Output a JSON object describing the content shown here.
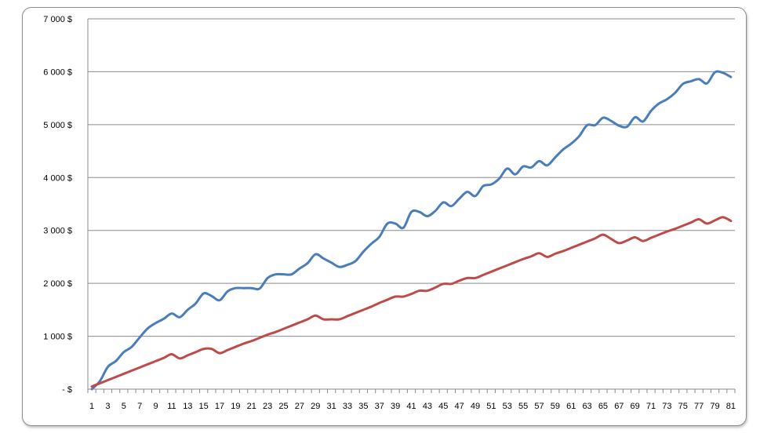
{
  "chart_data": {
    "type": "line",
    "title": "",
    "xlabel": "",
    "ylabel": "",
    "ylim": [
      0,
      7000
    ],
    "grid": true,
    "legend": "none",
    "smooth": true,
    "y_ticks": [
      0,
      1000,
      2000,
      3000,
      4000,
      5000,
      6000,
      7000
    ],
    "y_tick_labels": [
      "- $",
      "1 000 $",
      "2 000 $",
      "3 000 $",
      "4 000 $",
      "5 000 $",
      "6 000 $",
      "7 000 $"
    ],
    "x": [
      1,
      2,
      3,
      4,
      5,
      6,
      7,
      8,
      9,
      10,
      11,
      12,
      13,
      14,
      15,
      16,
      17,
      18,
      19,
      20,
      21,
      22,
      23,
      24,
      25,
      26,
      27,
      28,
      29,
      30,
      31,
      32,
      33,
      34,
      35,
      36,
      37,
      38,
      39,
      40,
      41,
      42,
      43,
      44,
      45,
      46,
      47,
      48,
      49,
      50,
      51,
      52,
      53,
      54,
      55,
      56,
      57,
      58,
      59,
      60,
      61,
      62,
      63,
      64,
      65,
      66,
      67,
      68,
      69,
      70,
      71,
      72,
      73,
      74,
      75,
      76,
      77,
      78,
      79,
      80,
      81
    ],
    "x_tick_labels": [
      "1",
      "3",
      "5",
      "7",
      "9",
      "11",
      "13",
      "15",
      "17",
      "19",
      "21",
      "23",
      "25",
      "27",
      "29",
      "31",
      "33",
      "35",
      "37",
      "39",
      "41",
      "43",
      "45",
      "47",
      "49",
      "51",
      "53",
      "55",
      "57",
      "59",
      "61",
      "63",
      "65",
      "67",
      "69",
      "71",
      "73",
      "75",
      "77",
      "79",
      "81"
    ],
    "series": [
      {
        "color": "#4a7ebb",
        "values": [
          0,
          150,
          420,
          530,
          700,
          800,
          980,
          1150,
          1250,
          1330,
          1430,
          1360,
          1500,
          1620,
          1810,
          1760,
          1680,
          1850,
          1910,
          1910,
          1910,
          1900,
          2100,
          2170,
          2170,
          2170,
          2280,
          2380,
          2550,
          2470,
          2390,
          2310,
          2350,
          2420,
          2600,
          2750,
          2880,
          3130,
          3130,
          3050,
          3350,
          3350,
          3270,
          3370,
          3530,
          3460,
          3600,
          3730,
          3650,
          3840,
          3870,
          3980,
          4170,
          4060,
          4210,
          4190,
          4310,
          4230,
          4380,
          4530,
          4640,
          4780,
          4990,
          4990,
          5130,
          5070,
          4980,
          4960,
          5140,
          5060,
          5260,
          5400,
          5480,
          5600,
          5770,
          5820,
          5860,
          5780,
          5990,
          5980,
          5900
        ]
      },
      {
        "color": "#be4b48",
        "values": [
          50,
          110,
          170,
          230,
          290,
          350,
          410,
          470,
          530,
          590,
          660,
          580,
          640,
          700,
          760,
          760,
          680,
          740,
          800,
          860,
          910,
          970,
          1030,
          1080,
          1140,
          1200,
          1260,
          1320,
          1390,
          1320,
          1320,
          1320,
          1380,
          1440,
          1500,
          1560,
          1630,
          1690,
          1750,
          1750,
          1800,
          1860,
          1860,
          1920,
          1990,
          1990,
          2050,
          2100,
          2100,
          2160,
          2220,
          2280,
          2340,
          2400,
          2460,
          2510,
          2570,
          2500,
          2560,
          2610,
          2670,
          2730,
          2790,
          2850,
          2920,
          2840,
          2760,
          2810,
          2870,
          2800,
          2860,
          2920,
          2980,
          3030,
          3090,
          3150,
          3210,
          3130,
          3190,
          3250,
          3180
        ]
      }
    ]
  }
}
